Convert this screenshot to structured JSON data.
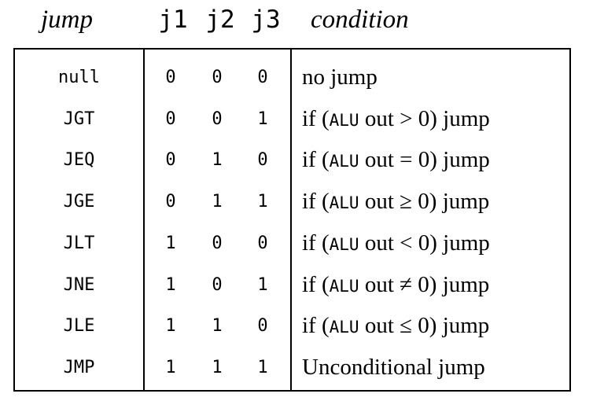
{
  "header": {
    "jump": "jump",
    "j1": "j1",
    "j2": "j2",
    "j3": "j3",
    "condition": "condition"
  },
  "rows": [
    {
      "mnemonic": "null",
      "j1": "0",
      "j2": "0",
      "j3": "0",
      "cond_prefix": "no jump",
      "cond_alu": "",
      "cond_suffix": ""
    },
    {
      "mnemonic": "JGT",
      "j1": "0",
      "j2": "0",
      "j3": "1",
      "cond_prefix": "if (",
      "cond_alu": "ALU",
      "cond_suffix": " out > 0) jump"
    },
    {
      "mnemonic": "JEQ",
      "j1": "0",
      "j2": "1",
      "j3": "0",
      "cond_prefix": "if (",
      "cond_alu": "ALU",
      "cond_suffix": " out = 0) jump"
    },
    {
      "mnemonic": "JGE",
      "j1": "0",
      "j2": "1",
      "j3": "1",
      "cond_prefix": "if (",
      "cond_alu": "ALU",
      "cond_suffix": " out ≥ 0) jump"
    },
    {
      "mnemonic": "JLT",
      "j1": "1",
      "j2": "0",
      "j3": "0",
      "cond_prefix": "if (",
      "cond_alu": "ALU",
      "cond_suffix": " out < 0) jump"
    },
    {
      "mnemonic": "JNE",
      "j1": "1",
      "j2": "0",
      "j3": "1",
      "cond_prefix": "if (",
      "cond_alu": "ALU",
      "cond_suffix": " out ≠ 0) jump"
    },
    {
      "mnemonic": "JLE",
      "j1": "1",
      "j2": "1",
      "j3": "0",
      "cond_prefix": "if (",
      "cond_alu": "ALU",
      "cond_suffix": " out ≤ 0) jump"
    },
    {
      "mnemonic": "JMP",
      "j1": "1",
      "j2": "1",
      "j3": "1",
      "cond_prefix": "Unconditional jump",
      "cond_alu": "",
      "cond_suffix": ""
    }
  ]
}
